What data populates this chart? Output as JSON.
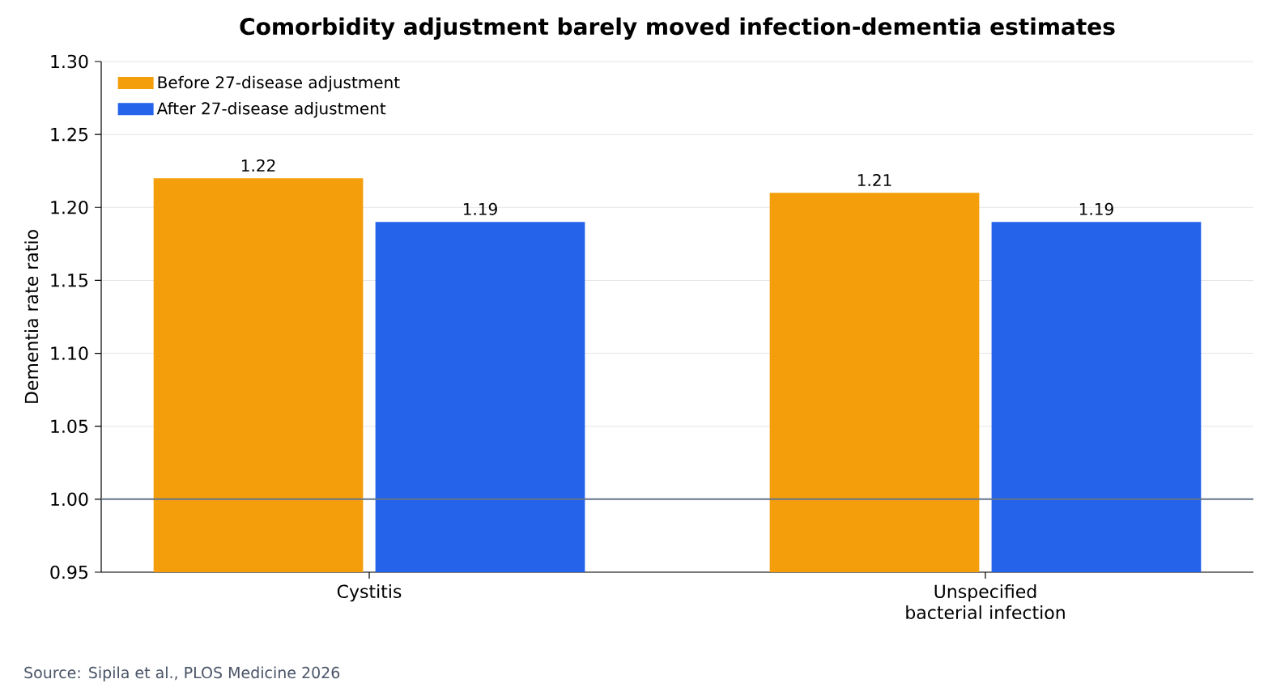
{
  "chart_data": {
    "type": "bar",
    "title": "Comorbidity adjustment barely moved infection-dementia estimates",
    "ylabel": "Dementia rate ratio",
    "categories": [
      "Cystitis",
      "Unspecified bacterial infection"
    ],
    "series": [
      {
        "name": "Before 27-disease adjustment",
        "color": "#f59e0b",
        "values": [
          1.22,
          1.21
        ]
      },
      {
        "name": "After 27-disease adjustment",
        "color": "#2563eb",
        "values": [
          1.19,
          1.19
        ]
      }
    ],
    "ylim": [
      0.95,
      1.3
    ],
    "yticks": [
      {
        "value": 0.95,
        "label": "0.95"
      },
      {
        "value": 1.0,
        "label": "1.00"
      },
      {
        "value": 1.05,
        "label": "1.05"
      },
      {
        "value": 1.1,
        "label": "1.10"
      },
      {
        "value": 1.15,
        "label": "1.15"
      },
      {
        "value": 1.2,
        "label": "1.20"
      },
      {
        "value": 1.25,
        "label": "1.25"
      },
      {
        "value": 1.3,
        "label": "1.30"
      }
    ],
    "ref_lines": [
      {
        "axis": "y",
        "value": 1.0,
        "color": "#64748b"
      }
    ],
    "grid": "y",
    "legend": "top left",
    "data_labels": true,
    "annotations": [
      "Source: Sipila et al., PLOS Medicine 2026"
    ]
  }
}
